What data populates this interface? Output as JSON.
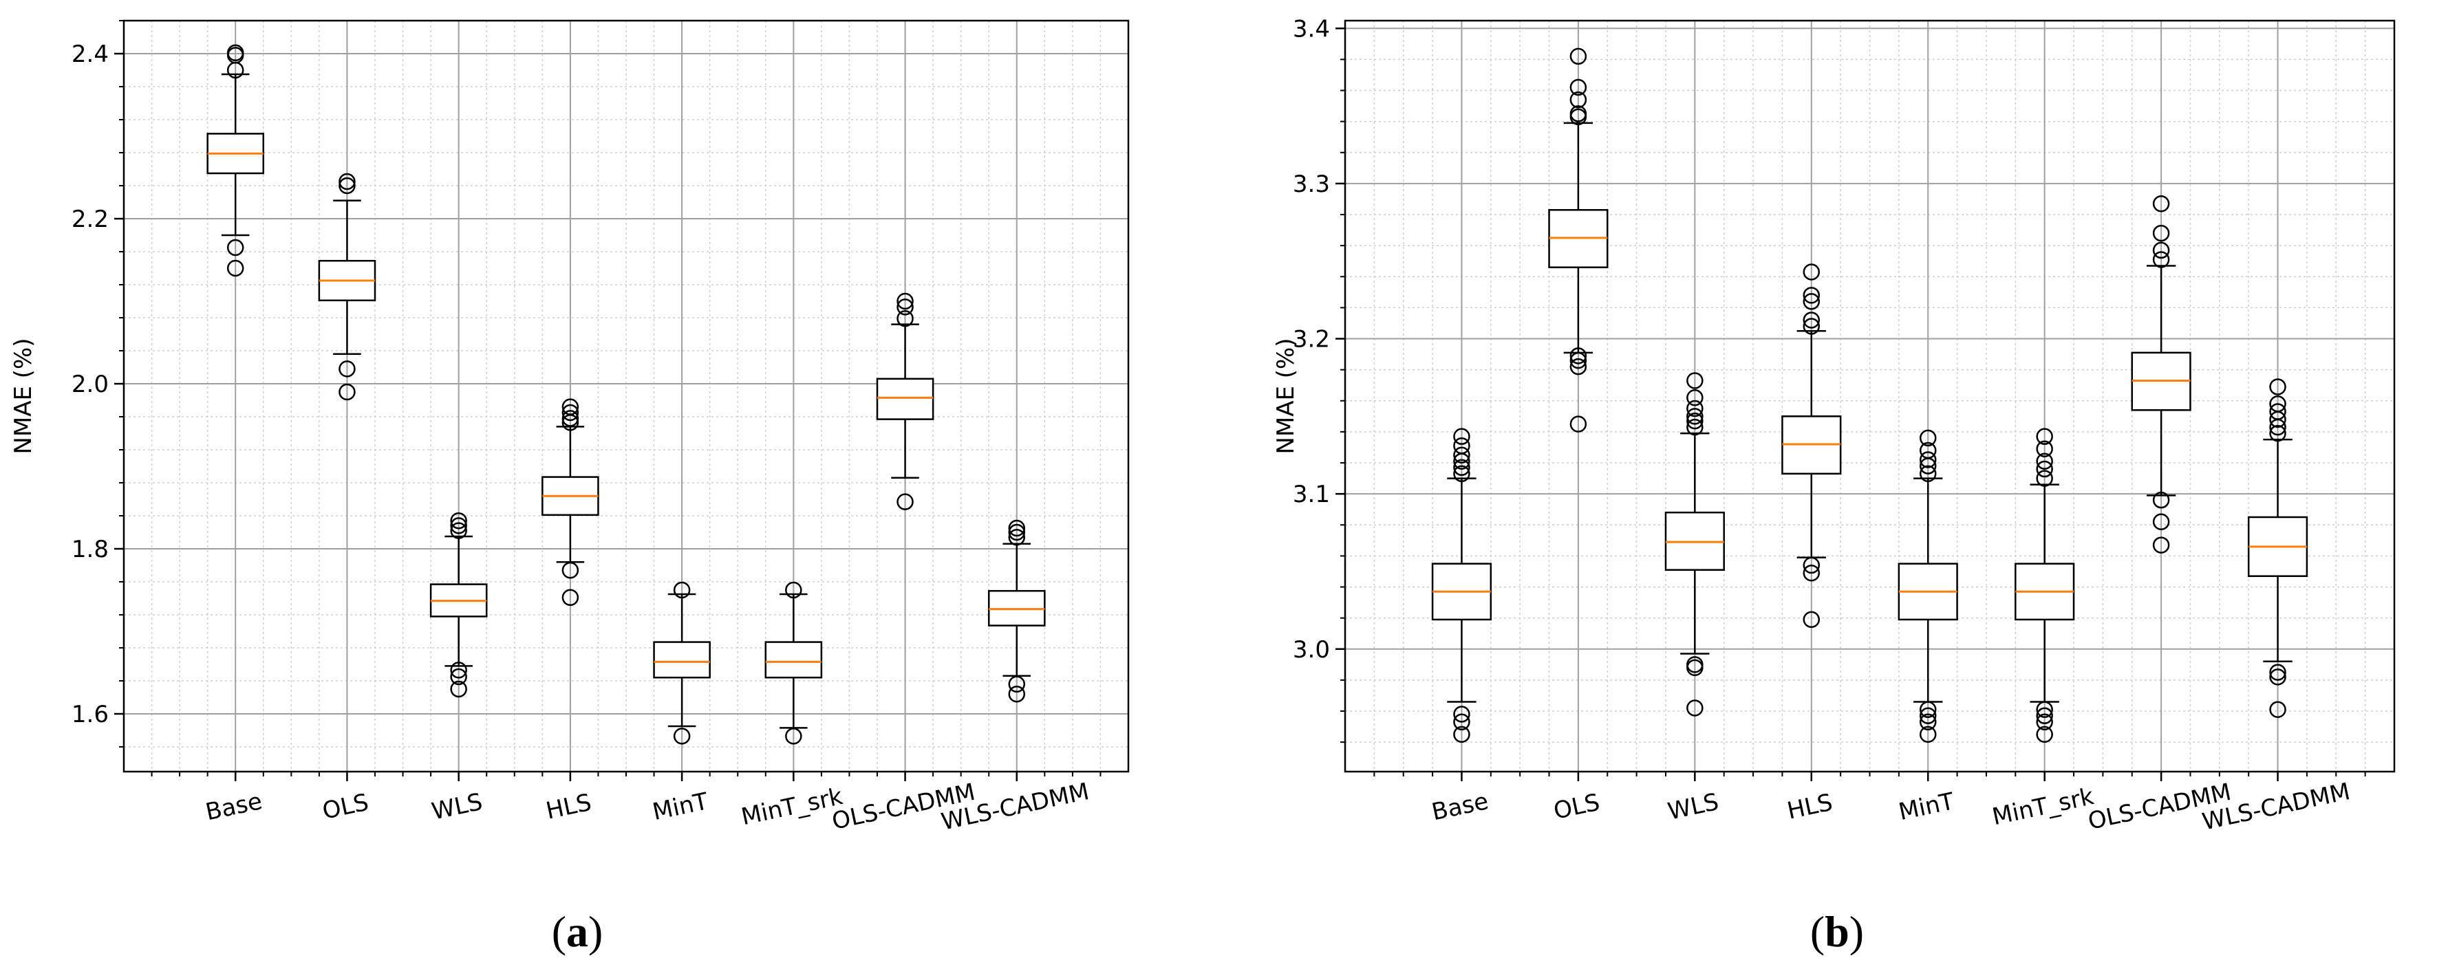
{
  "captions": [
    {
      "open": "(",
      "letter": "a",
      "close": ")"
    },
    {
      "open": "(",
      "letter": "b",
      "close": ")"
    }
  ],
  "chart_data": [
    {
      "type": "boxplot",
      "panel": "a",
      "title": "",
      "xlabel": "",
      "ylabel": "NMAE (%)",
      "ylim": [
        1.53,
        2.44
      ],
      "yticks": [
        1.6,
        1.8,
        2.0,
        2.2,
        2.4
      ],
      "ytick_labels": [
        "1.6",
        "1.8",
        "2.0",
        "2.2",
        "2.4"
      ],
      "grid": "major and minor",
      "categories": [
        "Base",
        "OLS",
        "WLS",
        "HLS",
        "MinT",
        "MinT_srk",
        "OLS-CADMM",
        "WLS-CADMM"
      ],
      "boxes": [
        {
          "whislo": 2.18,
          "q1": 2.255,
          "med": 2.279,
          "q3": 2.303,
          "whishi": 2.375,
          "fliers": [
            2.14,
            2.165,
            2.38,
            2.398,
            2.401
          ]
        },
        {
          "whislo": 2.036,
          "q1": 2.101,
          "med": 2.125,
          "q3": 2.149,
          "whishi": 2.222,
          "fliers": [
            1.99,
            2.018,
            2.24,
            2.245
          ]
        },
        {
          "whislo": 1.658,
          "q1": 1.718,
          "med": 1.737,
          "q3": 1.757,
          "whishi": 1.815,
          "fliers": [
            1.63,
            1.645,
            1.653,
            1.822,
            1.828,
            1.834
          ]
        },
        {
          "whislo": 1.784,
          "q1": 1.841,
          "med": 1.864,
          "q3": 1.887,
          "whishi": 1.948,
          "fliers": [
            1.741,
            1.774,
            1.953,
            1.958,
            1.965,
            1.972
          ]
        },
        {
          "whislo": 1.585,
          "q1": 1.644,
          "med": 1.663,
          "q3": 1.687,
          "whishi": 1.745,
          "fliers": [
            1.573,
            1.75
          ]
        },
        {
          "whislo": 1.583,
          "q1": 1.644,
          "med": 1.663,
          "q3": 1.687,
          "whishi": 1.745,
          "fliers": [
            1.573,
            1.75
          ]
        },
        {
          "whislo": 1.886,
          "q1": 1.957,
          "med": 1.983,
          "q3": 2.006,
          "whishi": 2.072,
          "fliers": [
            1.857,
            2.079,
            2.093,
            2.1
          ]
        },
        {
          "whislo": 1.646,
          "q1": 1.707,
          "med": 1.727,
          "q3": 1.749,
          "whishi": 1.806,
          "fliers": [
            1.624,
            1.636,
            1.814,
            1.82,
            1.825
          ]
        }
      ]
    },
    {
      "type": "boxplot",
      "panel": "b",
      "title": "",
      "xlabel": "",
      "ylabel": "NMAE (%)",
      "ylim": [
        2.921,
        3.405
      ],
      "yticks": [
        3.0,
        3.1,
        3.2,
        3.3,
        3.4
      ],
      "ytick_labels": [
        "3.0",
        "3.1",
        "3.2",
        "3.3",
        "3.4"
      ],
      "grid": "major and minor",
      "categories": [
        "Base",
        "OLS",
        "WLS",
        "HLS",
        "MinT",
        "MinT_srk",
        "OLS-CADMM",
        "WLS-CADMM"
      ],
      "boxes": [
        {
          "whislo": 2.966,
          "q1": 3.019,
          "med": 3.037,
          "q3": 3.055,
          "whishi": 3.11,
          "fliers": [
            2.945,
            2.953,
            2.958,
            3.113,
            3.117,
            3.121,
            3.125,
            3.131,
            3.137
          ]
        },
        {
          "whislo": 3.191,
          "q1": 3.246,
          "med": 3.265,
          "q3": 3.283,
          "whishi": 3.339,
          "fliers": [
            3.145,
            3.182,
            3.186,
            3.189,
            3.343,
            3.345,
            3.354,
            3.362,
            3.382
          ]
        },
        {
          "whislo": 2.997,
          "q1": 3.051,
          "med": 3.069,
          "q3": 3.088,
          "whishi": 3.139,
          "fliers": [
            2.962,
            2.988,
            2.99,
            3.143,
            3.147,
            3.15,
            3.155,
            3.162,
            3.173
          ]
        },
        {
          "whislo": 3.059,
          "q1": 3.113,
          "med": 3.132,
          "q3": 3.15,
          "whishi": 3.205,
          "fliers": [
            3.019,
            3.049,
            3.054,
            3.208,
            3.212,
            3.224,
            3.228,
            3.243
          ]
        },
        {
          "whislo": 2.966,
          "q1": 3.019,
          "med": 3.037,
          "q3": 3.055,
          "whishi": 3.11,
          "fliers": [
            2.945,
            2.953,
            2.957,
            2.961,
            3.113,
            3.118,
            3.122,
            3.128,
            3.136
          ]
        },
        {
          "whislo": 2.966,
          "q1": 3.019,
          "med": 3.037,
          "q3": 3.055,
          "whishi": 3.106,
          "fliers": [
            2.945,
            2.953,
            2.957,
            2.961,
            3.11,
            3.116,
            3.121,
            3.129,
            3.137
          ]
        },
        {
          "whislo": 3.099,
          "q1": 3.154,
          "med": 3.173,
          "q3": 3.191,
          "whishi": 3.247,
          "fliers": [
            3.067,
            3.082,
            3.096,
            3.251,
            3.257,
            3.268,
            3.287
          ]
        },
        {
          "whislo": 2.992,
          "q1": 3.047,
          "med": 3.066,
          "q3": 3.085,
          "whishi": 3.135,
          "fliers": [
            2.961,
            2.982,
            2.985,
            3.139,
            3.143,
            3.148,
            3.153,
            3.158,
            3.169
          ]
        }
      ]
    }
  ]
}
